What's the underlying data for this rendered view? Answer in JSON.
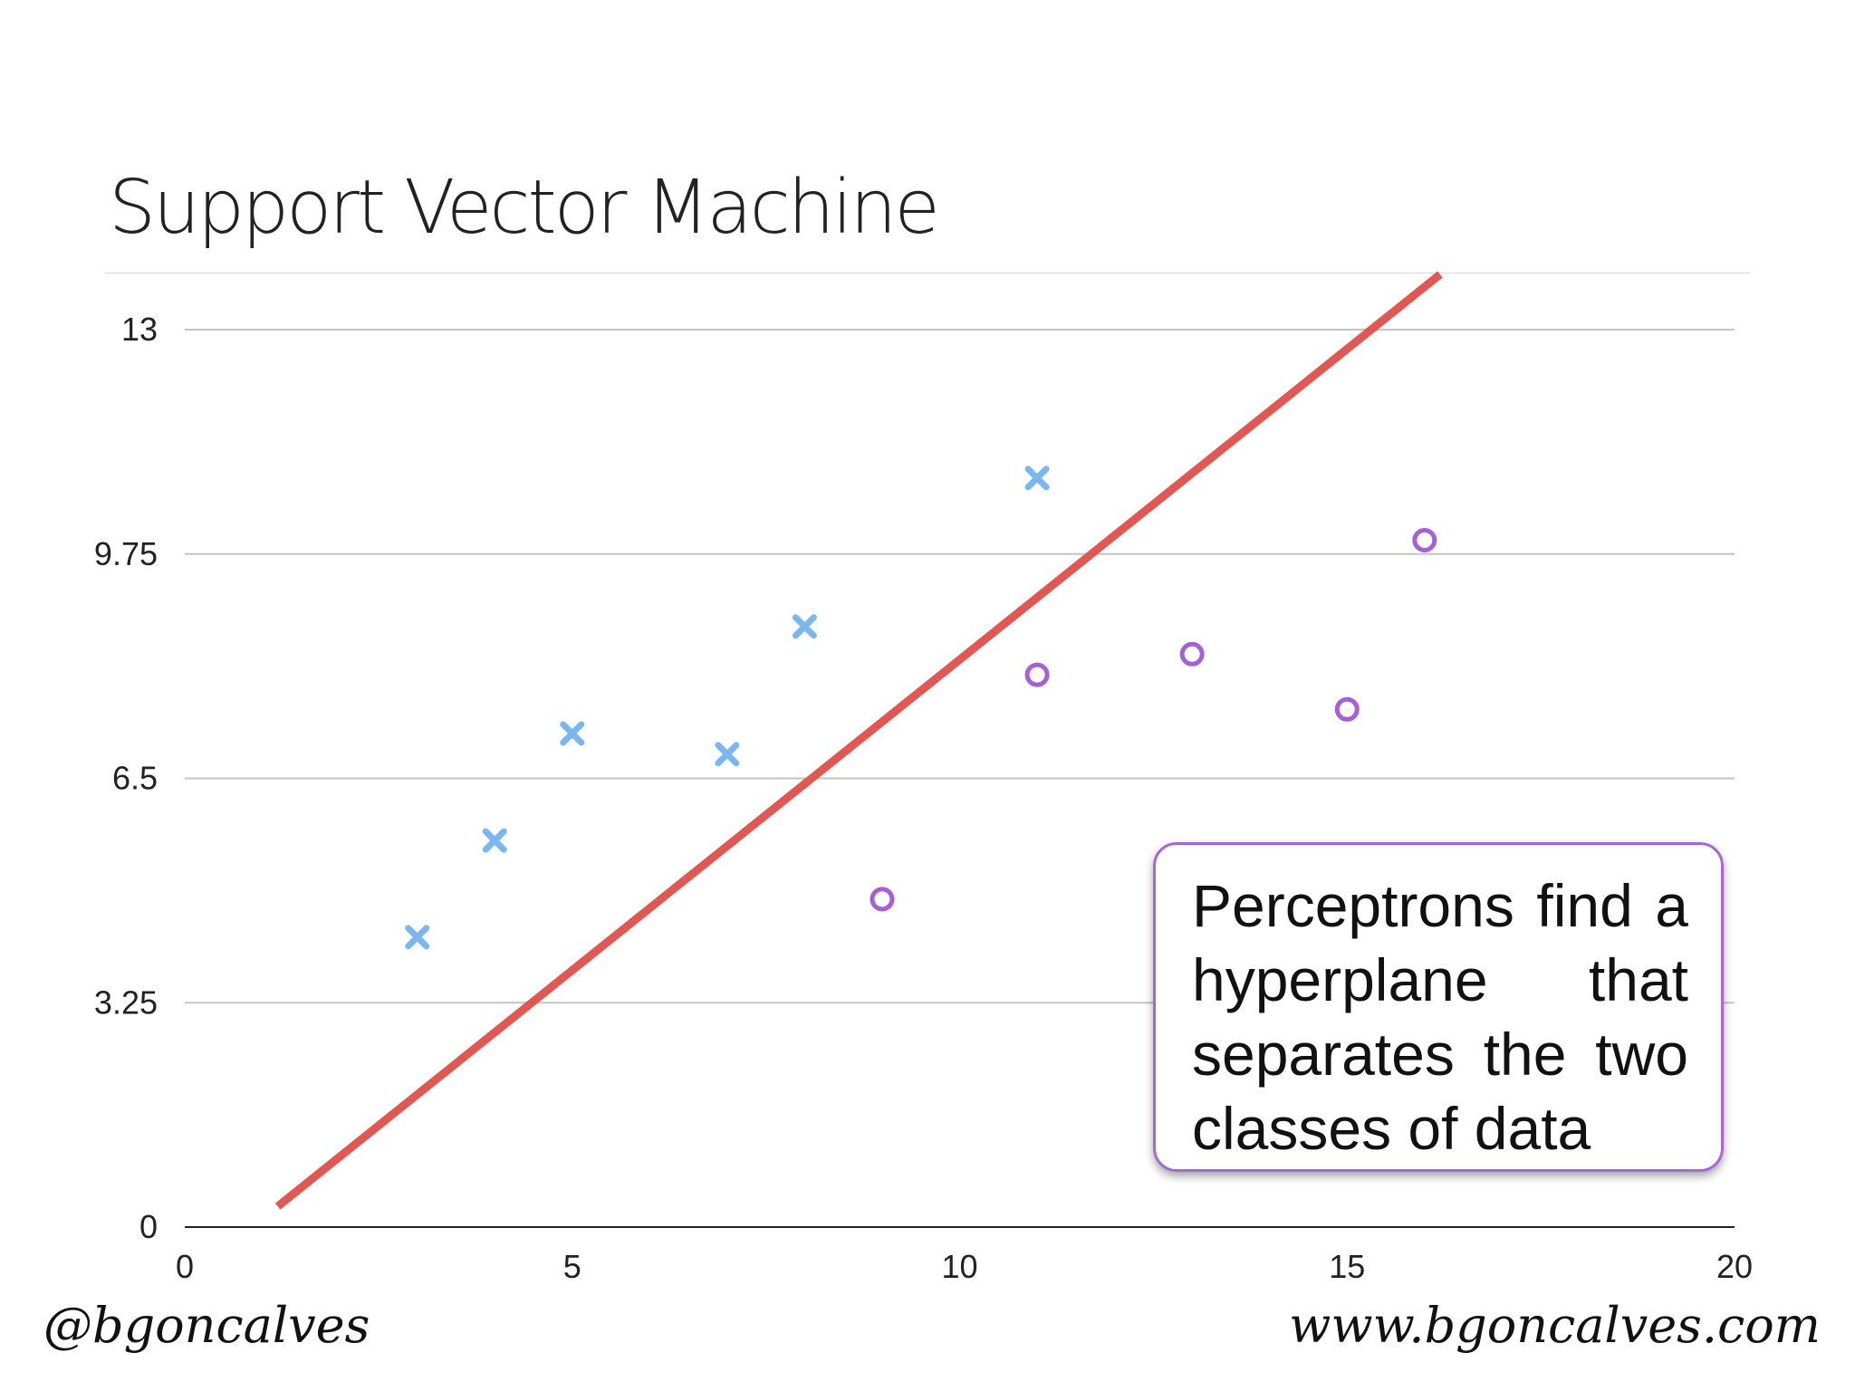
{
  "slide": {
    "title": "Support Vector Machine",
    "callout": "Perceptrons find a hyperplane that separates the two classes of data",
    "footer_left": "@bgoncalves",
    "footer_right": "www.bgoncalves.com"
  },
  "colors": {
    "class_a": "#7ab6f0",
    "class_b": "#a75fd8",
    "separator": "#e0504a",
    "callout_border": "#a866d9"
  },
  "chart_data": {
    "type": "scatter",
    "title": "Support Vector Machine",
    "xlim": [
      0,
      20
    ],
    "ylim": [
      0,
      13
    ],
    "x_ticks": [
      "0",
      "5",
      "10",
      "15",
      "20"
    ],
    "y_ticks": [
      "0",
      "3.25",
      "6.5",
      "9.75",
      "13"
    ],
    "grid": true,
    "series": [
      {
        "marker": "x-icon",
        "color": "#7ab6f0",
        "points": [
          {
            "x": 3,
            "y": 4.2
          },
          {
            "x": 4,
            "y": 5.6
          },
          {
            "x": 5,
            "y": 7.15
          },
          {
            "x": 7,
            "y": 6.85
          },
          {
            "x": 8,
            "y": 8.7
          },
          {
            "x": 11,
            "y": 10.85
          }
        ]
      },
      {
        "marker": "circle-icon",
        "color": "#a75fd8",
        "points": [
          {
            "x": 9,
            "y": 4.75
          },
          {
            "x": 11,
            "y": 8.0
          },
          {
            "x": 13,
            "y": 8.3
          },
          {
            "x": 15,
            "y": 7.5
          },
          {
            "x": 16,
            "y": 9.95
          }
        ]
      }
    ],
    "separator_line": {
      "color": "#e0504a",
      "from": {
        "x": 1.2,
        "y": 0.3
      },
      "to": {
        "x": 16.2,
        "y": 13.8
      }
    }
  }
}
